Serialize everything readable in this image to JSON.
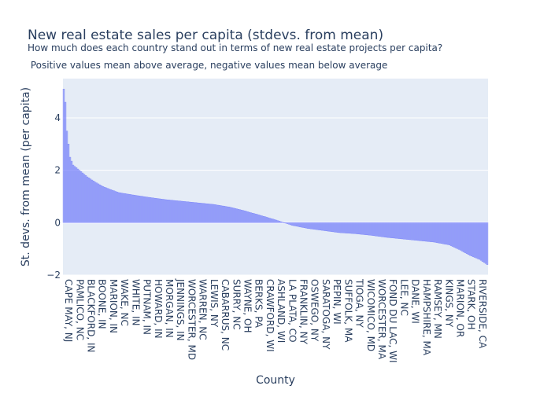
{
  "chart_data": {
    "type": "bar",
    "title": "New real estate sales per capita (stdevs. from mean)",
    "subtitle_lines": [
      "How much does each country stand out in terms of new real estate projects per capita?",
      " Positive values mean above average, negative values mean below average"
    ],
    "xlabel": "County",
    "ylabel": "St. devs. from mean (per capita)",
    "ylim": [
      -2,
      5.5
    ],
    "yticks": [
      -2,
      0,
      2,
      4
    ],
    "grid": true,
    "bar_count": 270,
    "x_tick_labels": [
      "CAPE MAY, NJ",
      "PAMLICO, NC",
      "BLACKFORD, IN",
      "BOONE, IN",
      "MARION, IN",
      "WAKE, NC",
      "WHITE, IN",
      "PUTNAM, IN",
      "HOWARD, IN",
      "MORGAN, IN",
      "JENNINGS, IN",
      "WORCESTER, MD",
      "WARREN, NC",
      "LEWIS, NY",
      "CABARRUS, NC",
      "SURRY, NC",
      "WAYNE, OH",
      "BERKS, PA",
      "CRAWFORD, WI",
      "ASHLAND, WI",
      "LA PLATA, CO",
      "FRANKLIN, NY",
      "OSWEGO, NY",
      "SARATOGA, NY",
      "PEPIN, WI",
      "SUFFOLK, MA",
      "TIOGA, NY",
      "WICOMICO, MD",
      "WORCESTER, MA",
      "FOND DU LAC, WI",
      "LEE, NC",
      "DANE, WI",
      "HAMPSHIRE, MA",
      "RAMSEY, MN",
      "KINGS, NY",
      "MARION, OR",
      "STARK, OH",
      "RIVERSIDE, CA"
    ],
    "value_profile": [
      [
        0,
        5.1
      ],
      [
        1,
        4.6
      ],
      [
        2,
        3.5
      ],
      [
        3,
        3.0
      ],
      [
        4,
        2.5
      ],
      [
        6,
        2.2
      ],
      [
        10,
        2.0
      ],
      [
        15,
        1.75
      ],
      [
        20,
        1.55
      ],
      [
        25,
        1.38
      ],
      [
        30,
        1.26
      ],
      [
        35,
        1.15
      ],
      [
        45,
        1.05
      ],
      [
        55,
        0.96
      ],
      [
        65,
        0.88
      ],
      [
        75,
        0.82
      ],
      [
        85,
        0.76
      ],
      [
        95,
        0.7
      ],
      [
        105,
        0.6
      ],
      [
        115,
        0.45
      ],
      [
        125,
        0.28
      ],
      [
        135,
        0.1
      ],
      [
        140,
        0.0
      ],
      [
        145,
        -0.1
      ],
      [
        155,
        -0.22
      ],
      [
        165,
        -0.3
      ],
      [
        175,
        -0.38
      ],
      [
        185,
        -0.42
      ],
      [
        195,
        -0.48
      ],
      [
        205,
        -0.56
      ],
      [
        215,
        -0.62
      ],
      [
        225,
        -0.68
      ],
      [
        235,
        -0.74
      ],
      [
        245,
        -0.85
      ],
      [
        252,
        -1.05
      ],
      [
        258,
        -1.25
      ],
      [
        264,
        -1.4
      ],
      [
        269,
        -1.6
      ]
    ],
    "bar_color": "#636efa",
    "plot_bg": "#e5ecf6"
  }
}
